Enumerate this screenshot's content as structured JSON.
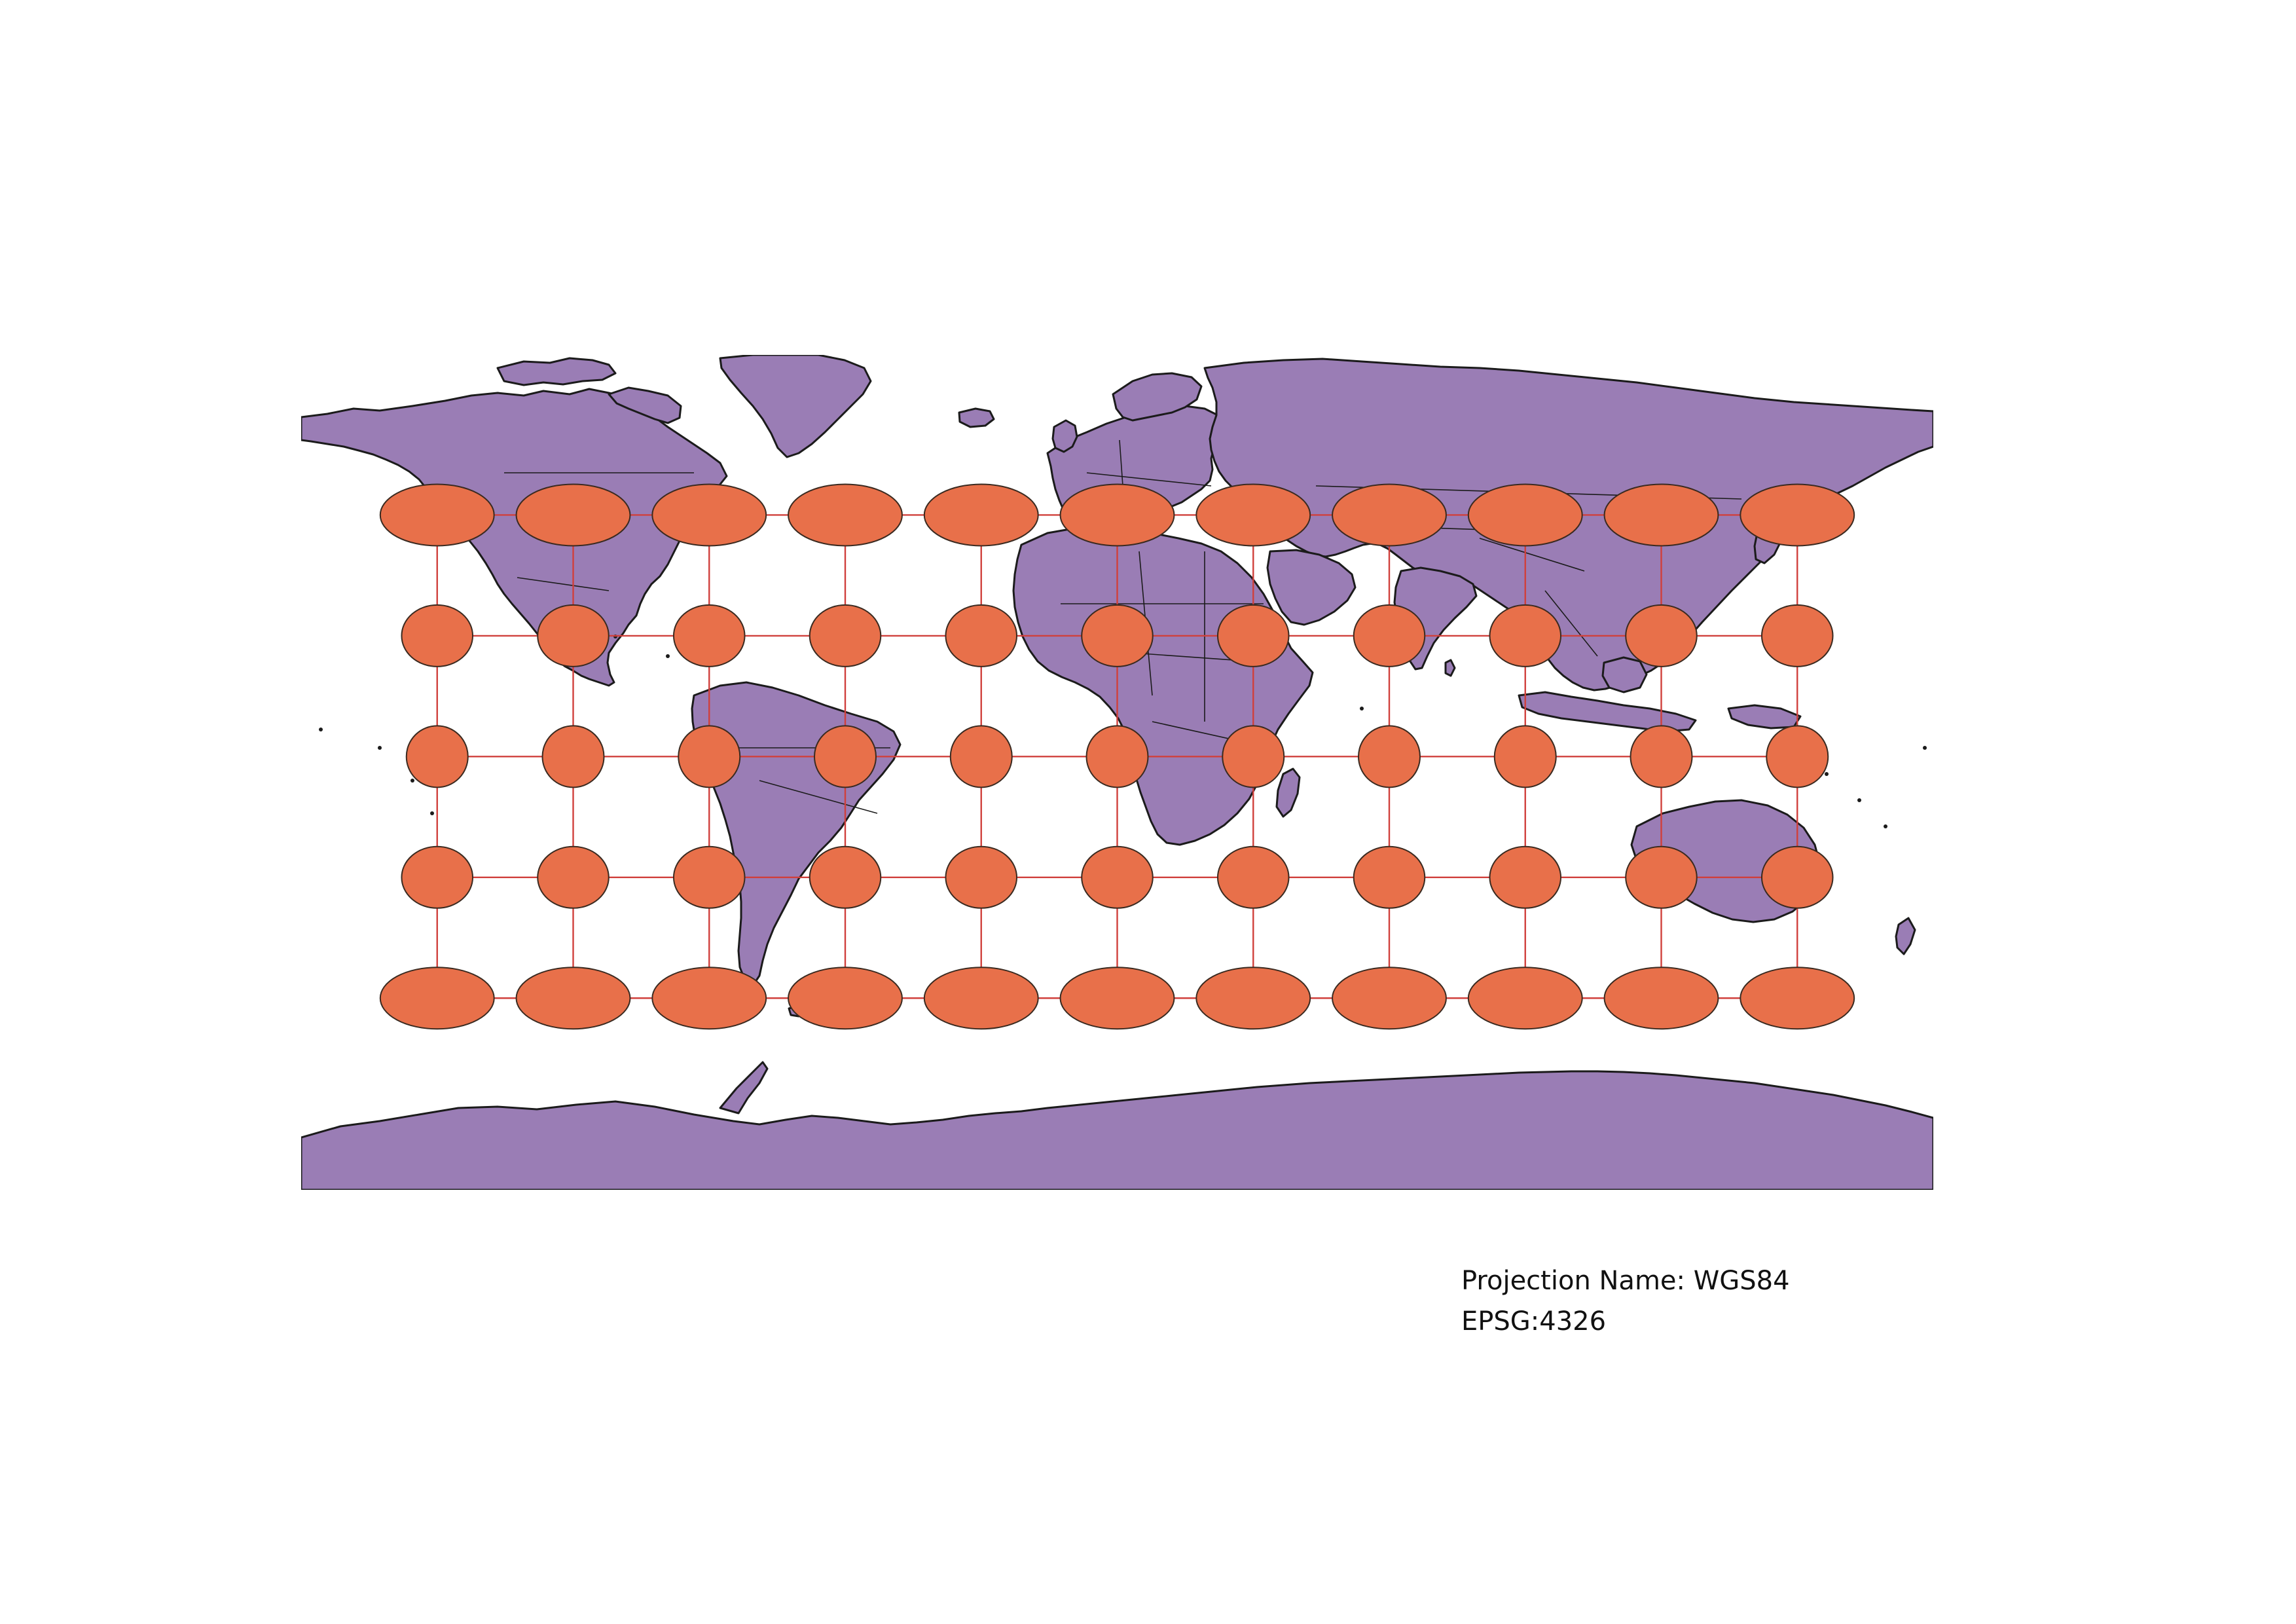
{
  "map": {
    "projection_label": "Projection Name: WGS84",
    "epsg_label": "EPSG:4326",
    "colors": {
      "land": "#9a7db5",
      "coastline": "#1b1b1b",
      "tissot_fill": "#e8704a",
      "graticule": "#d0403c",
      "background": "#ffffff"
    },
    "layers": [
      "world-countries",
      "tissot-indicatrices",
      "graticule"
    ],
    "graticule": {
      "longitudes": [
        -150,
        -120,
        -90,
        -60,
        -30,
        0,
        30,
        60,
        90,
        120,
        150
      ],
      "latitudes": [
        60,
        30,
        0,
        -30,
        -60
      ]
    }
  }
}
